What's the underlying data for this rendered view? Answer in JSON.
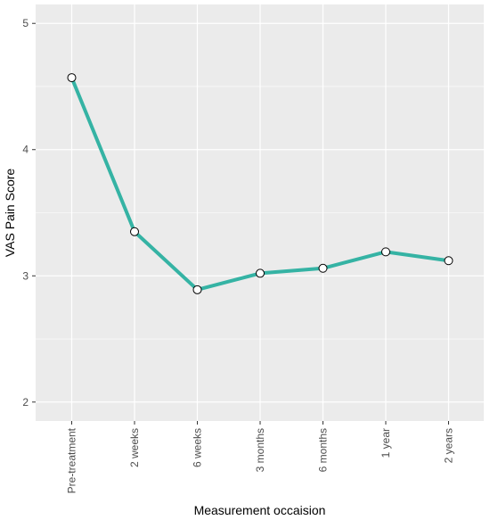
{
  "chart_data": {
    "type": "line",
    "title": "",
    "xlabel": "Measurement occaision",
    "ylabel": "VAS Pain Score",
    "categories": [
      "Pre-treatment",
      "2 weeks",
      "6 weeks",
      "3 months",
      "6 months",
      "1 year",
      "2 years"
    ],
    "series": [
      {
        "values": [
          4.57,
          3.35,
          2.89,
          3.02,
          3.06,
          3.19,
          3.12
        ],
        "color": "#35b3a4"
      }
    ],
    "yticks": [
      2,
      3,
      4,
      5
    ],
    "ylim": [
      1.85,
      5.15
    ],
    "grid": true,
    "legend": "none",
    "panel_background": "#ebebeb",
    "gridline_color": "#ffffff",
    "marker_fill": "#ffffff",
    "marker_stroke": "#000000"
  }
}
